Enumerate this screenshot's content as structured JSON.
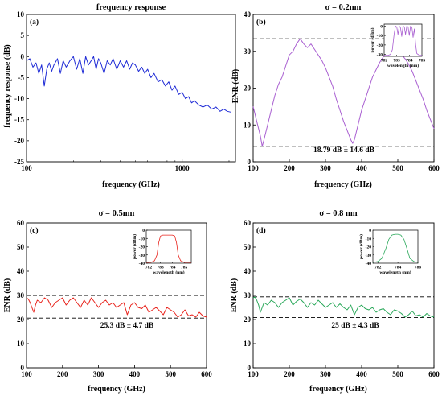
{
  "chart_data": [
    {
      "type": "line",
      "panel_label": "(a)",
      "title": "frequency response",
      "xlabel": "frequency (GHz)",
      "ylabel": "frequency response (dB)",
      "xscale": "log",
      "xlim": [
        100,
        2200
      ],
      "ylim": [
        -25,
        10
      ],
      "xticks": [
        100,
        1000
      ],
      "xtick_labels": [
        "100",
        "1000"
      ],
      "yticks": [
        -25,
        -20,
        -15,
        -10,
        -5,
        0,
        5,
        10
      ],
      "ytick_labels": [
        "-25",
        "-20",
        "-15",
        "-10",
        "-5",
        "0",
        "5",
        "10"
      ],
      "color": "#1f2bd6",
      "series": [
        {
          "x": [
            100,
            105,
            110,
            115,
            120,
            125,
            130,
            135,
            140,
            145,
            150,
            158,
            165,
            172,
            180,
            190,
            200,
            210,
            220,
            230,
            240,
            250,
            260,
            270,
            280,
            290,
            300,
            315,
            330,
            345,
            360,
            380,
            400,
            420,
            440,
            460,
            480,
            500,
            525,
            550,
            575,
            600,
            630,
            660,
            700,
            740,
            780,
            820,
            860,
            900,
            950,
            1000,
            1050,
            1100,
            1150,
            1200,
            1280,
            1360,
            1450,
            1550,
            1650,
            1750,
            1850,
            1950,
            2050
          ],
          "y": [
            -1,
            -0.5,
            -2.5,
            -1.5,
            -4,
            -2,
            -7,
            -3,
            -1.5,
            -3.5,
            -2,
            -0.5,
            -4,
            -1,
            -2.5,
            -1,
            0,
            -3,
            -0.5,
            -4,
            0,
            -2,
            -1,
            0,
            -3,
            -0.5,
            -1.5,
            -4,
            -1,
            -2,
            -0.5,
            -3,
            -1,
            -2.5,
            -1,
            -3,
            -1.5,
            -2,
            -3.5,
            -2.5,
            -4,
            -3,
            -5,
            -4,
            -6,
            -5.5,
            -7,
            -6,
            -8,
            -7,
            -9,
            -8.5,
            -10,
            -9.5,
            -11,
            -10.5,
            -11.5,
            -12,
            -11.5,
            -12.5,
            -12,
            -13,
            -12.5,
            -13,
            -13.2
          ]
        }
      ]
    },
    {
      "type": "line",
      "panel_label": "(b)",
      "title": "σ = 0.2nm",
      "xlabel": "frequency (GHz)",
      "ylabel": "ENR (dB)",
      "xlim": [
        100,
        600
      ],
      "ylim": [
        0,
        40
      ],
      "xticks": [
        100,
        200,
        300,
        400,
        500,
        600
      ],
      "xtick_labels": [
        "100",
        "200",
        "300",
        "400",
        "500",
        "600"
      ],
      "yticks": [
        0,
        10,
        20,
        30,
        40
      ],
      "ytick_labels": [
        "0",
        "10",
        "20",
        "30",
        "40"
      ],
      "color": "#a95fd1",
      "hlines": [
        33.4,
        4.2
      ],
      "annotation": "18.79 dB ± 14.6 dB",
      "series": [
        {
          "x": [
            100,
            110,
            120,
            125,
            130,
            140,
            150,
            160,
            170,
            180,
            190,
            200,
            210,
            220,
            230,
            240,
            250,
            260,
            270,
            280,
            290,
            300,
            310,
            320,
            330,
            340,
            350,
            360,
            370,
            375,
            380,
            390,
            400,
            410,
            420,
            430,
            440,
            450,
            460,
            470,
            480,
            490,
            500,
            510,
            520,
            530,
            540,
            550,
            560,
            570,
            580,
            590,
            600
          ],
          "y": [
            15,
            11,
            7,
            4.2,
            6,
            10,
            14,
            18,
            21,
            23,
            26,
            29,
            30,
            32,
            33.4,
            32,
            31,
            32,
            30.5,
            29,
            27.5,
            25.5,
            23,
            20.5,
            17,
            14,
            11,
            8.5,
            6,
            5,
            6,
            10,
            14,
            17,
            20,
            23,
            25,
            27,
            28.5,
            29,
            29.8,
            30,
            30,
            29.2,
            28,
            26.5,
            24.5,
            22,
            19.5,
            17,
            14,
            11.5,
            9
          ]
        }
      ],
      "inset": {
        "xlabel": "wavelength (nm)",
        "ylabel": "power (dBm)",
        "xlim": [
          782,
          785
        ],
        "ylim": [
          -32,
          2
        ],
        "xticks": [
          782,
          783,
          784,
          785
        ],
        "xtick_labels": [
          "782",
          "783",
          "784",
          "785"
        ],
        "yticks": [
          0,
          -10,
          -20,
          -30
        ],
        "ytick_labels": [
          "0",
          "-10",
          "-20",
          "-30"
        ],
        "x": [
          782,
          782.3,
          782.5,
          782.65,
          782.8,
          782.9,
          783.0,
          783.1,
          783.2,
          783.3,
          783.4,
          783.5,
          783.6,
          783.7,
          783.8,
          783.9,
          784.0,
          784.1,
          784.2,
          784.3,
          784.4,
          784.5,
          784.6,
          784.8,
          785
        ],
        "y": [
          -31,
          -31,
          -30,
          -25,
          -8,
          0,
          -1,
          -9,
          0,
          -2,
          -11,
          0,
          -1,
          -9,
          0,
          -1,
          -10,
          0,
          -1,
          -12,
          -3,
          -20,
          -29,
          -31,
          -31
        ]
      }
    },
    {
      "type": "line",
      "panel_label": "(c)",
      "title": "σ = 0.5nm",
      "xlabel": "frequency (GHz)",
      "ylabel": "ENR (dB)",
      "xlim": [
        100,
        600
      ],
      "ylim": [
        0,
        60
      ],
      "xticks": [
        100,
        200,
        300,
        400,
        500,
        600
      ],
      "xtick_labels": [
        "100",
        "200",
        "300",
        "400",
        "500",
        "600"
      ],
      "yticks": [
        0,
        10,
        20,
        30,
        40,
        50,
        60
      ],
      "ytick_labels": [
        "0",
        "10",
        "20",
        "30",
        "40",
        "50",
        "60"
      ],
      "color": "#e8231c",
      "hlines": [
        30,
        20.6
      ],
      "annotation": "25.3 dB ± 4.7 dB",
      "series": [
        {
          "x": [
            100,
            105,
            110,
            115,
            120,
            125,
            130,
            140,
            150,
            160,
            170,
            180,
            190,
            200,
            210,
            220,
            230,
            240,
            250,
            260,
            270,
            280,
            290,
            300,
            310,
            320,
            330,
            340,
            350,
            360,
            370,
            380,
            390,
            400,
            410,
            420,
            430,
            440,
            450,
            460,
            470,
            480,
            490,
            500,
            510,
            520,
            530,
            540,
            550,
            560,
            570,
            580,
            590,
            600
          ],
          "y": [
            29,
            28.5,
            27,
            25,
            23,
            26,
            28,
            27,
            29,
            28,
            25,
            27,
            28,
            29,
            26,
            28,
            29,
            27,
            25,
            28,
            26,
            29,
            27,
            25,
            27,
            28,
            26,
            27,
            25,
            26,
            27,
            22,
            26,
            27,
            25,
            24.5,
            26,
            23,
            24,
            25,
            23.5,
            22,
            25,
            24,
            23,
            21,
            22,
            24,
            21.5,
            22,
            21,
            23,
            21.5,
            21
          ]
        }
      ],
      "inset": {
        "xlabel": "wavelength (nm)",
        "ylabel": "power (dBm)",
        "xlim": [
          781.8,
          785.6
        ],
        "ylim": [
          -40,
          0
        ],
        "xticks": [
          782,
          783,
          784,
          785
        ],
        "xtick_labels": [
          "782",
          "783",
          "784",
          "785"
        ],
        "yticks": [
          0,
          -10,
          -20,
          -30,
          -40
        ],
        "ytick_labels": [
          "0",
          "-10",
          "-20",
          "-30",
          "-40"
        ],
        "x": [
          781.8,
          782.2,
          782.5,
          782.7,
          782.85,
          783.0,
          783.2,
          783.5,
          783.8,
          784.0,
          784.2,
          784.35,
          784.5,
          784.7,
          785.0,
          785.3,
          785.6
        ],
        "y": [
          -39,
          -39,
          -37,
          -30,
          -15,
          -7,
          -6,
          -6,
          -6,
          -6,
          -7,
          -15,
          -30,
          -37,
          -39,
          -39,
          -39
        ]
      }
    },
    {
      "type": "line",
      "panel_label": "(d)",
      "title": "σ = 0.8 nm",
      "xlabel": "frequency (GHz)",
      "ylabel": "ENR (dB)",
      "xlim": [
        100,
        600
      ],
      "ylim": [
        0,
        60
      ],
      "xticks": [
        100,
        200,
        300,
        400,
        500,
        600
      ],
      "xtick_labels": [
        "100",
        "200",
        "300",
        "400",
        "500",
        "600"
      ],
      "yticks": [
        0,
        10,
        20,
        30,
        40,
        50,
        60
      ],
      "ytick_labels": [
        "0",
        "10",
        "20",
        "30",
        "40",
        "50",
        "60"
      ],
      "color": "#2aa85a",
      "hlines": [
        29.4,
        20.8
      ],
      "annotation": "25 dB ± 4.3 dB",
      "series": [
        {
          "x": [
            100,
            105,
            110,
            115,
            120,
            125,
            130,
            140,
            150,
            160,
            170,
            180,
            190,
            200,
            210,
            220,
            230,
            240,
            250,
            260,
            270,
            280,
            290,
            300,
            310,
            320,
            330,
            340,
            350,
            360,
            370,
            380,
            390,
            400,
            410,
            420,
            430,
            440,
            450,
            460,
            470,
            480,
            490,
            500,
            510,
            520,
            530,
            540,
            550,
            560,
            570,
            580,
            590,
            600
          ],
          "y": [
            29,
            29.3,
            28,
            26,
            23,
            25,
            27,
            26,
            28,
            27,
            25,
            27,
            28,
            29,
            26,
            27.5,
            28.5,
            27,
            25,
            27,
            26,
            28,
            26.5,
            25,
            26,
            27,
            25,
            26.5,
            25,
            24,
            26,
            22,
            25,
            26,
            24.5,
            24,
            25,
            23,
            24,
            24.5,
            23,
            22,
            24,
            23.5,
            22.5,
            21,
            22,
            23.5,
            21.5,
            22,
            21,
            22.5,
            21.5,
            21
          ]
        }
      ],
      "inset": {
        "xlabel": "wavelength (nm)",
        "ylabel": "power (dBm)",
        "xlim": [
          781.5,
          786
        ],
        "ylim": [
          -40,
          0
        ],
        "xticks": [
          782,
          784,
          786
        ],
        "xtick_labels": [
          "782",
          "784",
          "786"
        ],
        "yticks": [
          0,
          -10,
          -20,
          -30,
          -40
        ],
        "ytick_labels": [
          "0",
          "-10",
          "-20",
          "-30",
          "-40"
        ],
        "x": [
          781.5,
          782.0,
          782.4,
          782.8,
          783.1,
          783.4,
          783.7,
          784.0,
          784.3,
          784.6,
          784.9,
          785.2,
          785.6,
          786.0
        ],
        "y": [
          -39,
          -38,
          -34,
          -22,
          -11,
          -6,
          -5,
          -5,
          -6,
          -11,
          -22,
          -34,
          -38,
          -39
        ]
      }
    }
  ]
}
